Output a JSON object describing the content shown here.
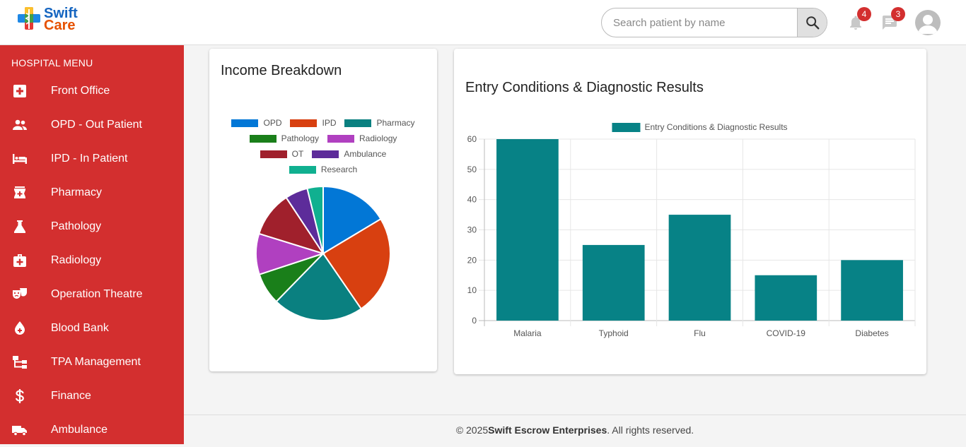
{
  "header": {
    "logo_line1": "Swift",
    "logo_line2": "Care",
    "search_placeholder": "Search patient by name",
    "search_value": "",
    "notifications_count": "4",
    "messages_count": "3"
  },
  "sidebar": {
    "title": "HOSPITAL MENU",
    "items": [
      {
        "label": "Front Office",
        "icon": "plus-box-icon"
      },
      {
        "label": "OPD - Out Patient",
        "icon": "people-icon"
      },
      {
        "label": "IPD - In Patient",
        "icon": "bed-icon"
      },
      {
        "label": "Pharmacy",
        "icon": "pharmacy-icon"
      },
      {
        "label": "Pathology",
        "icon": "flask-icon"
      },
      {
        "label": "Radiology",
        "icon": "medical-bag-icon"
      },
      {
        "label": "Operation Theatre",
        "icon": "masks-icon"
      },
      {
        "label": "Blood Bank",
        "icon": "blood-drop-icon"
      },
      {
        "label": "TPA Management",
        "icon": "hierarchy-icon"
      },
      {
        "label": "Finance",
        "icon": "dollar-icon"
      },
      {
        "label": "Ambulance",
        "icon": "truck-icon"
      }
    ]
  },
  "income_card": {
    "title": "Income Breakdown"
  },
  "diagnostic_card": {
    "title": "Entry Conditions & Diagnostic Results"
  },
  "chart_data": [
    {
      "type": "pie",
      "title": "Income Breakdown",
      "categories": [
        "OPD",
        "IPD",
        "Pharmacy",
        "Pathology",
        "Radiology",
        "OT",
        "Ambulance",
        "Research"
      ],
      "values": [
        15,
        22,
        20,
        7,
        9,
        10,
        5,
        3.5
      ],
      "colors": [
        "#0277d6",
        "#d84010",
        "#0a8080",
        "#1a7f1a",
        "#b040c0",
        "#a0202c",
        "#5d2c9a",
        "#10b090"
      ],
      "legend": "top"
    },
    {
      "type": "bar",
      "title": "Entry Conditions & Diagnostic Results",
      "series": [
        {
          "name": "Entry Conditions & Diagnostic Results",
          "values": [
            60,
            25,
            35,
            15,
            20
          ]
        }
      ],
      "categories": [
        "Malaria",
        "Typhoid",
        "Flu",
        "COVID-19",
        "Diabetes"
      ],
      "ylim": [
        0,
        60
      ],
      "yticks": [
        0,
        10,
        20,
        30,
        40,
        50,
        60
      ],
      "color": "#078286",
      "grid": true,
      "legend": "top"
    }
  ],
  "footer": {
    "prefix": "© 2025 ",
    "company": "Swift Escrow Enterprises",
    "suffix": ". All rights reserved."
  }
}
